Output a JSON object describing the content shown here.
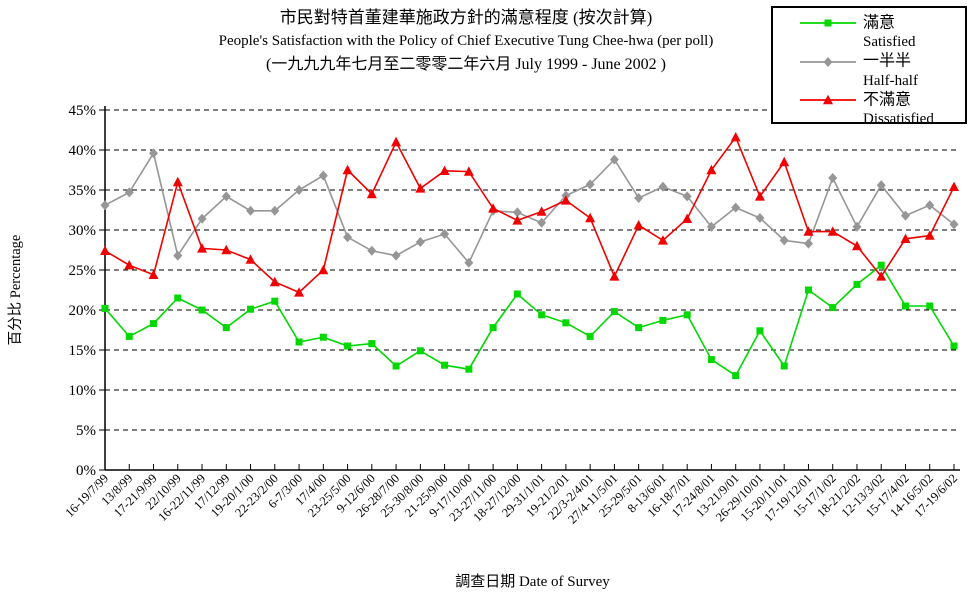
{
  "chart_data": {
    "type": "line",
    "title_zh": "市民對特首董建華施政方針的滿意程度 (按次計算)",
    "title_en": "People's Satisfaction with the Policy of Chief Executive Tung Chee-hwa (per poll)",
    "title_period": "(一九九九年七月至二零零二年六月 July 1999 - June 2002 )",
    "xlabel": "調查日期 Date of Survey",
    "ylabel": "百分比 Percentage",
    "ylim": [
      0,
      45
    ],
    "ytick_step": 5,
    "yticks": [
      "0%",
      "5%",
      "10%",
      "15%",
      "20%",
      "25%",
      "30%",
      "35%",
      "40%",
      "45%"
    ],
    "grid": "horizontal-dashed",
    "legend_position": "top-right",
    "categories": [
      "16-19/7/99",
      "13/8/99",
      "17-21/9/99",
      "22/10/99",
      "16-22/11/99",
      "17/12/99",
      "19-20/1/00",
      "22-23/2/00",
      "6-7/3/00",
      "17/4/00",
      "23-25/5/00",
      "9-12/6/00",
      "26-28/7/00",
      "25-30/8/00",
      "21-25/9/00",
      "9-17/10/00",
      "23-27/11/00",
      "18-27/12/00",
      "29-31/1/01",
      "19-21/2/01",
      "22/3-2/4/01",
      "27/4-11/5/01",
      "25-29/5/01",
      "8-13/6/01",
      "16-18/7/01",
      "17-24/8/01",
      "13-21/9/01",
      "26-29/10/01",
      "15-20/11/01",
      "17-19/12/01",
      "15-17/1/02",
      "18-21/2/02",
      "12-13/3/02",
      "15-17/4/02",
      "14-16/5/02",
      "17-19/6/02"
    ],
    "series": [
      {
        "key": "satisfied",
        "name_zh": "滿意",
        "name_en": "Satisfied",
        "color": "#00d800",
        "marker": "square",
        "values": [
          20.2,
          16.7,
          18.3,
          21.5,
          20.0,
          17.8,
          20.1,
          21.1,
          16.0,
          16.6,
          15.5,
          15.8,
          13.0,
          14.9,
          13.1,
          12.6,
          17.8,
          22.0,
          19.4,
          18.4,
          16.7,
          19.8,
          17.8,
          18.7,
          19.4,
          13.8,
          11.8,
          17.4,
          13.0,
          22.5,
          20.3,
          23.2,
          25.6,
          20.5,
          20.5,
          15.5
        ]
      },
      {
        "key": "half-half",
        "name_zh": "一半半",
        "name_en": "Half-half",
        "color": "#969696",
        "marker": "diamond",
        "values": [
          33.1,
          34.7,
          39.6,
          26.8,
          31.4,
          34.2,
          32.4,
          32.4,
          35.0,
          36.8,
          29.1,
          27.4,
          26.8,
          28.5,
          29.5,
          25.9,
          32.4,
          32.2,
          30.9,
          34.3,
          35.7,
          38.8,
          34.0,
          35.4,
          34.2,
          30.4,
          32.8,
          31.5,
          28.7,
          28.3,
          36.5,
          30.4,
          35.6,
          31.8,
          33.1,
          30.7
        ]
      },
      {
        "key": "dissatisfied",
        "name_zh": "不滿意",
        "name_en": "Dissatisfied",
        "color": "#f00000",
        "marker": "triangle",
        "values": [
          27.4,
          25.6,
          24.4,
          36.0,
          27.7,
          27.5,
          26.3,
          23.5,
          22.2,
          25.0,
          37.5,
          34.5,
          41.0,
          35.2,
          37.4,
          37.3,
          32.7,
          31.2,
          32.3,
          33.7,
          31.5,
          24.2,
          30.6,
          28.7,
          31.4,
          37.5,
          41.6,
          34.2,
          38.5,
          29.8,
          29.8,
          28.0,
          24.2,
          28.9,
          29.3,
          35.4
        ]
      }
    ]
  }
}
